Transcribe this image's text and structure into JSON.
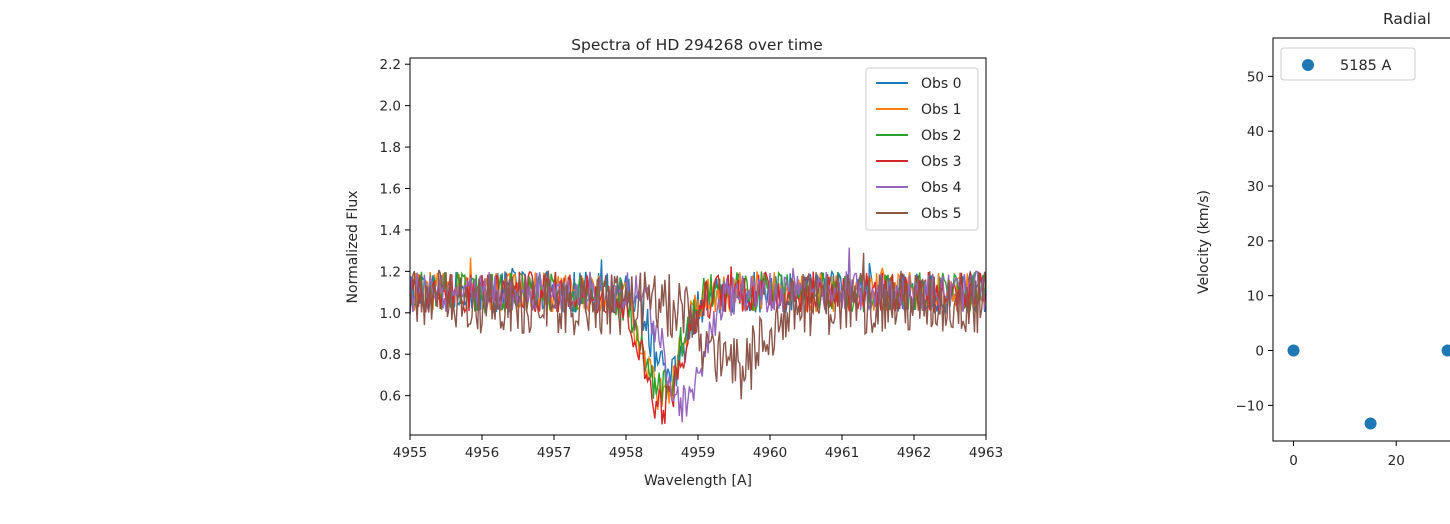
{
  "chart_data": [
    {
      "type": "line",
      "title": "Spectra of HD 294268 over time",
      "xlabel": "Wavelength [A]",
      "ylabel": "Normalized Flux",
      "xlim": [
        4955,
        4963
      ],
      "ylim": [
        0.41,
        2.23
      ],
      "xticks": [
        "4955",
        "4956",
        "4957",
        "4958",
        "4959",
        "4960",
        "4961",
        "4962",
        "4963"
      ],
      "yticks": [
        "0.6",
        "0.8",
        "1.0",
        "1.2",
        "1.4",
        "1.6",
        "1.8",
        "2.0",
        "2.2"
      ],
      "grid": false,
      "legend_position": "top-right",
      "series": [
        {
          "name": "Obs 0",
          "color": "#1f77b4",
          "continuum": 1.1,
          "line_center": 4958.6,
          "line_min": 0.68,
          "line_width": 0.32
        },
        {
          "name": "Obs 1",
          "color": "#ff7f0e",
          "continuum": 1.1,
          "line_center": 4958.5,
          "line_min": 0.6,
          "line_width": 0.35
        },
        {
          "name": "Obs 2",
          "color": "#2ca02c",
          "continuum": 1.1,
          "line_center": 4958.5,
          "line_min": 0.62,
          "line_width": 0.35
        },
        {
          "name": "Obs 3",
          "color": "#d62728",
          "continuum": 1.1,
          "line_center": 4958.5,
          "line_min": 0.55,
          "line_width": 0.38
        },
        {
          "name": "Obs 4",
          "color": "#9467bd",
          "continuum": 1.1,
          "line_center": 4958.8,
          "line_min": 0.56,
          "line_width": 0.35
        },
        {
          "name": "Obs 5",
          "color": "#8c564b",
          "continuum": 1.05,
          "line_center": 4959.5,
          "line_min": 0.72,
          "line_width": 0.55
        }
      ]
    },
    {
      "type": "scatter",
      "title": "Radial",
      "xlabel": "",
      "ylabel": "Velocity (km/s)",
      "xlim": [
        -4,
        33
      ],
      "ylim": [
        -16.5,
        57
      ],
      "xticks": [
        "0",
        "20"
      ],
      "yticks": [
        "−10",
        "0",
        "10",
        "20",
        "30",
        "40",
        "50"
      ],
      "grid": false,
      "legend_position": "top-left",
      "series": [
        {
          "name": "5185 A",
          "color": "#1f77b4",
          "x": [
            0,
            15,
            30
          ],
          "y": [
            0,
            -13.3,
            0
          ]
        }
      ]
    }
  ]
}
